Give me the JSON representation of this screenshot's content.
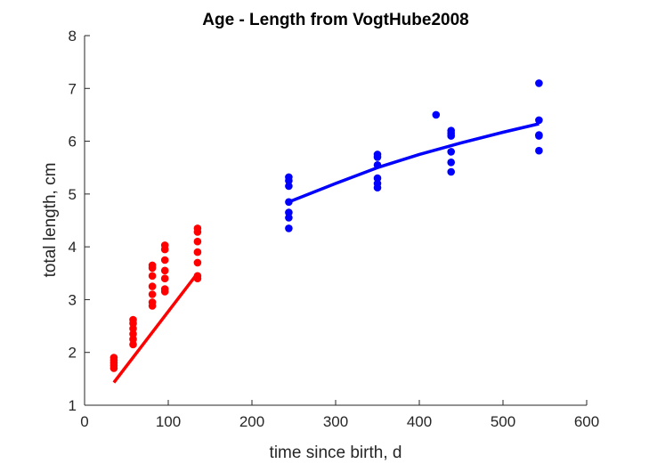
{
  "chart_data": {
    "type": "scatter",
    "title": "Age - Length from VogtHube2008",
    "xlabel": "time since birth, d",
    "ylabel": "total length, cm",
    "xlim": [
      0,
      600
    ],
    "ylim": [
      1,
      8
    ],
    "xticks": [
      0,
      100,
      200,
      300,
      400,
      500,
      600
    ],
    "yticks": [
      1,
      2,
      3,
      4,
      5,
      6,
      7,
      8
    ],
    "grid": false,
    "series": [
      {
        "color": "#ff0000",
        "points": [
          [
            35,
            1.7
          ],
          [
            35,
            1.75
          ],
          [
            35,
            1.8
          ],
          [
            35,
            1.85
          ],
          [
            35,
            1.9
          ],
          [
            58,
            2.15
          ],
          [
            58,
            2.25
          ],
          [
            58,
            2.35
          ],
          [
            58,
            2.45
          ],
          [
            58,
            2.55
          ],
          [
            58,
            2.62
          ],
          [
            81,
            2.88
          ],
          [
            81,
            2.95
          ],
          [
            81,
            3.1
          ],
          [
            81,
            3.25
          ],
          [
            81,
            3.45
          ],
          [
            81,
            3.6
          ],
          [
            81,
            3.65
          ],
          [
            96,
            3.15
          ],
          [
            96,
            3.2
          ],
          [
            96,
            3.4
          ],
          [
            96,
            3.55
          ],
          [
            96,
            3.75
          ],
          [
            96,
            3.95
          ],
          [
            96,
            4.03
          ],
          [
            135,
            3.4
          ],
          [
            135,
            3.45
          ],
          [
            135,
            3.7
          ],
          [
            135,
            3.9
          ],
          [
            135,
            4.1
          ],
          [
            135,
            4.28
          ],
          [
            135,
            4.35
          ]
        ],
        "fit": [
          [
            35,
            1.43
          ],
          [
            135,
            3.5
          ]
        ]
      },
      {
        "color": "#0000ff",
        "points": [
          [
            244,
            4.35
          ],
          [
            244,
            4.55
          ],
          [
            244,
            4.65
          ],
          [
            244,
            4.85
          ],
          [
            244,
            5.15
          ],
          [
            244,
            5.25
          ],
          [
            244,
            5.32
          ],
          [
            350,
            5.12
          ],
          [
            350,
            5.2
          ],
          [
            350,
            5.3
          ],
          [
            350,
            5.55
          ],
          [
            350,
            5.7
          ],
          [
            350,
            5.75
          ],
          [
            420,
            6.5
          ],
          [
            438,
            5.42
          ],
          [
            438,
            5.6
          ],
          [
            438,
            5.8
          ],
          [
            438,
            6.1
          ],
          [
            438,
            6.15
          ],
          [
            438,
            6.2
          ],
          [
            543,
            5.82
          ],
          [
            543,
            6.1
          ],
          [
            543,
            6.12
          ],
          [
            543,
            6.4
          ],
          [
            543,
            7.1
          ]
        ],
        "fit": [
          [
            244,
            4.85
          ],
          [
            300,
            5.2
          ],
          [
            350,
            5.5
          ],
          [
            400,
            5.75
          ],
          [
            450,
            5.97
          ],
          [
            500,
            6.17
          ],
          [
            543,
            6.33
          ]
        ]
      }
    ]
  }
}
